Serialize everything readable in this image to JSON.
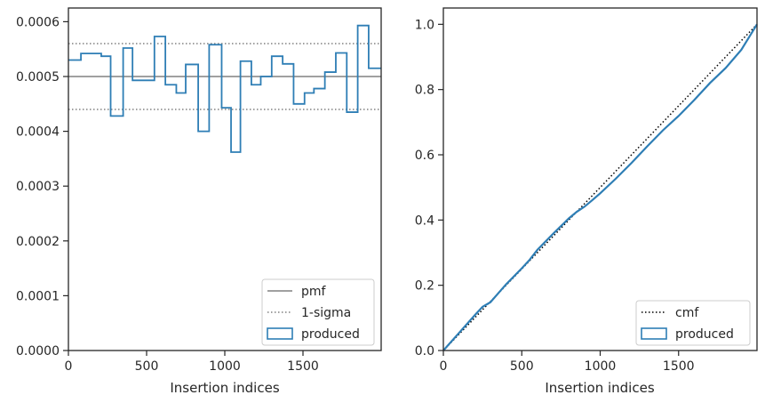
{
  "chart_data": [
    {
      "type": "step",
      "xlabel": "Insertion indices",
      "ylabel": "",
      "xlim": [
        0,
        2000
      ],
      "ylim": [
        0,
        0.000625
      ],
      "xticks": [
        0,
        500,
        1000,
        1500
      ],
      "xtick_labels": [
        "0",
        "500",
        "1000",
        "1500"
      ],
      "yticks": [
        0,
        0.0001,
        0.0002,
        0.0003,
        0.0004,
        0.0005,
        0.0006
      ],
      "ytick_labels": [
        "0.0000",
        "0.0001",
        "0.0002",
        "0.0003",
        "0.0004",
        "0.0005",
        "0.0006"
      ],
      "reference_lines": [
        {
          "name": "pmf",
          "y": 0.0005,
          "style": "solid",
          "color": "#808080"
        },
        {
          "name": "1-sigma",
          "y": 0.00056,
          "style": "dotted",
          "color": "#808080"
        },
        {
          "name": "1-sigma",
          "y": 0.00044,
          "style": "dotted",
          "color": "#808080"
        }
      ],
      "series": [
        {
          "name": "produced",
          "color": "#2e7eb5",
          "bin_edges": [
            0,
            80,
            210,
            270,
            350,
            410,
            550,
            620,
            690,
            750,
            830,
            900,
            980,
            1040,
            1100,
            1170,
            1230,
            1300,
            1370,
            1440,
            1510,
            1570,
            1640,
            1710,
            1780,
            1850,
            1920,
            2000
          ],
          "values": [
            0.00053,
            0.000542,
            0.000537,
            0.000428,
            0.000552,
            0.000493,
            0.000573,
            0.000485,
            0.00047,
            0.000522,
            0.0004,
            0.000558,
            0.000443,
            0.000362,
            0.000528,
            0.000485,
            0.0005,
            0.000537,
            0.000523,
            0.00045,
            0.00047,
            0.000478,
            0.000508,
            0.000543,
            0.000435,
            0.000593,
            0.000515
          ]
        }
      ],
      "legend": {
        "placement": "lower-right",
        "entries": [
          {
            "label": "pmf",
            "kind": "solid-line"
          },
          {
            "label": "1-sigma",
            "kind": "dotted-line"
          },
          {
            "label": "produced",
            "kind": "box"
          }
        ]
      }
    },
    {
      "type": "line",
      "xlabel": "Insertion indices",
      "ylabel": "",
      "xlim": [
        0,
        2000
      ],
      "ylim": [
        0,
        1.05
      ],
      "xticks": [
        0,
        500,
        1000,
        1500
      ],
      "xtick_labels": [
        "0",
        "500",
        "1000",
        "1500"
      ],
      "yticks": [
        0,
        0.2,
        0.4,
        0.6,
        0.8,
        1.0
      ],
      "ytick_labels": [
        "0.0",
        "0.2",
        "0.4",
        "0.6",
        "0.8",
        "1.0"
      ],
      "series": [
        {
          "name": "cmf",
          "style": "dotted",
          "color": "#000000",
          "x": [
            0,
            2000
          ],
          "y": [
            0,
            1.0
          ]
        },
        {
          "name": "produced",
          "style": "solid",
          "color": "#2e7eb5",
          "x": [
            0,
            100,
            200,
            250,
            300,
            400,
            500,
            550,
            600,
            700,
            800,
            850,
            900,
            950,
            1000,
            1100,
            1200,
            1300,
            1400,
            1500,
            1600,
            1700,
            1800,
            1900,
            2000
          ],
          "y": [
            0,
            0.054,
            0.108,
            0.134,
            0.148,
            0.203,
            0.252,
            0.278,
            0.309,
            0.358,
            0.405,
            0.425,
            0.441,
            0.461,
            0.482,
            0.527,
            0.575,
            0.626,
            0.675,
            0.719,
            0.768,
            0.82,
            0.866,
            0.922,
            1.0
          ]
        }
      ],
      "legend": {
        "placement": "lower-right",
        "entries": [
          {
            "label": "cmf",
            "kind": "dotted-line"
          },
          {
            "label": "produced",
            "kind": "box"
          }
        ]
      }
    }
  ]
}
